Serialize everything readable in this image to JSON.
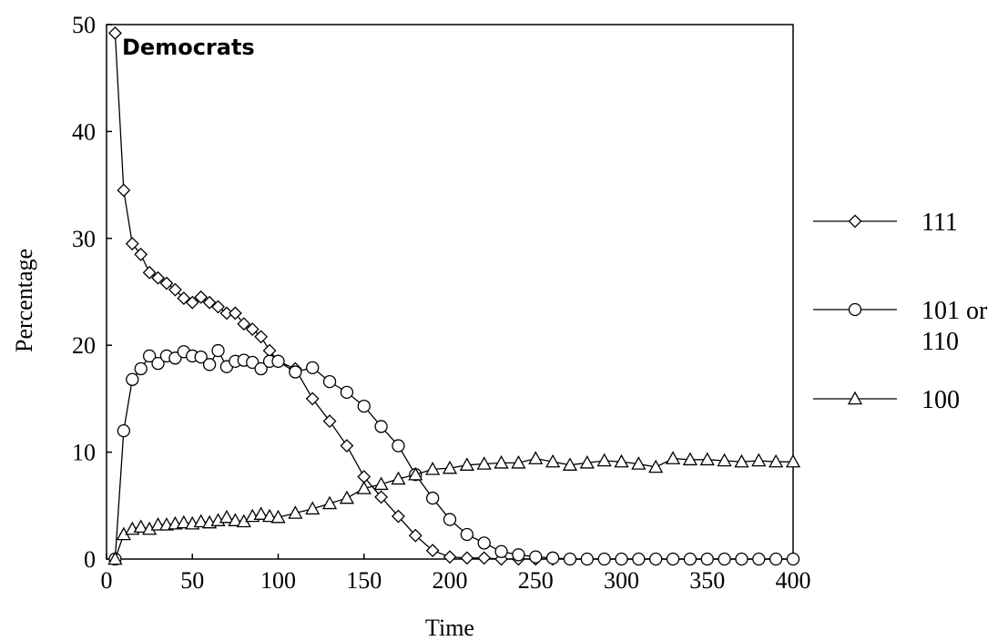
{
  "chart_data": {
    "type": "line",
    "title": "Democrats",
    "xlabel": "Time",
    "ylabel": "Percentage",
    "xlim": [
      0,
      400
    ],
    "ylim": [
      0,
      50
    ],
    "xticks": [
      "0",
      "50",
      "100",
      "150",
      "200",
      "250",
      "300",
      "350",
      "400"
    ],
    "yticks": [
      "0",
      "10",
      "20",
      "30",
      "40",
      "50"
    ],
    "grid": false,
    "legend_position": "right",
    "series": [
      {
        "name": "111",
        "marker": "diamond",
        "x": [
          5,
          10,
          15,
          20,
          25,
          30,
          35,
          40,
          45,
          50,
          55,
          60,
          65,
          70,
          75,
          80,
          85,
          90,
          95,
          100,
          110,
          120,
          130,
          140,
          150,
          160,
          170,
          180,
          190,
          200,
          210,
          220,
          230,
          240,
          250,
          260,
          270,
          280,
          290,
          300,
          310,
          320,
          330,
          340,
          350,
          360,
          370,
          380,
          390,
          400
        ],
        "y": [
          49.2,
          34.5,
          29.5,
          28.5,
          26.8,
          26.3,
          25.8,
          25.2,
          24.4,
          24.0,
          24.5,
          24.0,
          23.6,
          23.0,
          23.0,
          22.0,
          21.5,
          20.8,
          19.5,
          18.5,
          17.8,
          15.0,
          12.9,
          10.6,
          7.7,
          5.8,
          4.0,
          2.2,
          0.8,
          0.2,
          0.1,
          0.1,
          0.0,
          0.0,
          0.0,
          0.0,
          0.0,
          0.0,
          0.0,
          0.0,
          0.0,
          0.0,
          0.0,
          0.0,
          0.0,
          0.0,
          0.0,
          0.0,
          0.0,
          0.0
        ]
      },
      {
        "name": "101 or 110",
        "marker": "circle",
        "x": [
          5,
          10,
          15,
          20,
          25,
          30,
          35,
          40,
          45,
          50,
          55,
          60,
          65,
          70,
          75,
          80,
          85,
          90,
          95,
          100,
          110,
          120,
          130,
          140,
          150,
          160,
          170,
          180,
          190,
          200,
          210,
          220,
          230,
          240,
          250,
          260,
          270,
          280,
          290,
          300,
          310,
          320,
          330,
          340,
          350,
          360,
          370,
          380,
          390,
          400
        ],
        "y": [
          0.0,
          12.0,
          16.8,
          17.8,
          19.0,
          18.3,
          19.0,
          18.8,
          19.4,
          19.0,
          18.9,
          18.2,
          19.5,
          18.0,
          18.5,
          18.6,
          18.4,
          17.8,
          18.5,
          18.5,
          17.5,
          17.9,
          16.6,
          15.6,
          14.3,
          12.4,
          10.6,
          7.9,
          5.7,
          3.7,
          2.3,
          1.5,
          0.7,
          0.4,
          0.2,
          0.1,
          0.0,
          0.0,
          0.0,
          0.0,
          0.0,
          0.0,
          0.0,
          0.0,
          0.0,
          0.0,
          0.0,
          0.0,
          0.0,
          0.0
        ]
      },
      {
        "name": "100",
        "marker": "triangle",
        "x": [
          5,
          10,
          15,
          20,
          25,
          30,
          35,
          40,
          45,
          50,
          55,
          60,
          65,
          70,
          75,
          80,
          85,
          90,
          95,
          100,
          110,
          120,
          130,
          140,
          150,
          160,
          170,
          180,
          190,
          200,
          210,
          220,
          230,
          240,
          250,
          260,
          270,
          280,
          290,
          300,
          310,
          320,
          330,
          340,
          350,
          360,
          370,
          380,
          390,
          400
        ],
        "y": [
          0.0,
          2.3,
          2.8,
          3.0,
          2.8,
          3.2,
          3.2,
          3.3,
          3.4,
          3.3,
          3.5,
          3.4,
          3.6,
          3.9,
          3.6,
          3.5,
          4.0,
          4.2,
          4.0,
          3.9,
          4.3,
          4.7,
          5.2,
          5.7,
          6.6,
          7.0,
          7.5,
          7.9,
          8.4,
          8.5,
          8.8,
          8.9,
          9.0,
          9.0,
          9.4,
          9.1,
          8.8,
          9.0,
          9.2,
          9.1,
          8.9,
          8.6,
          9.4,
          9.3,
          9.3,
          9.2,
          9.1,
          9.2,
          9.1,
          9.1
        ]
      }
    ]
  }
}
